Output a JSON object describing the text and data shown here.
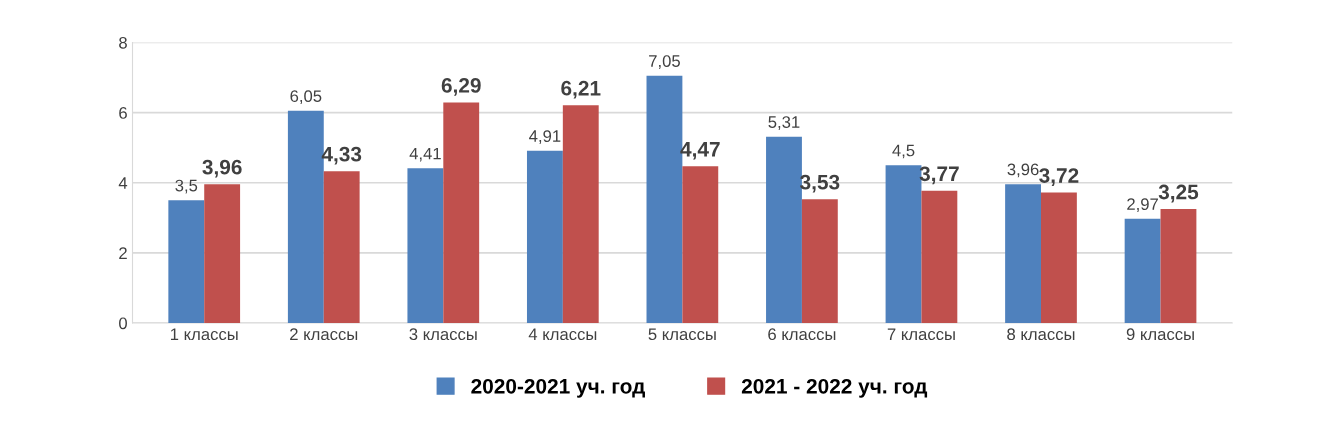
{
  "chart_data": {
    "type": "bar",
    "categories": [
      "1 классы",
      "2 классы",
      "3 классы",
      "4 классы",
      "5 классы",
      "6 классы",
      "7 классы",
      "8 классы",
      "9 классы"
    ],
    "series": [
      {
        "name": "2020-2021 уч. год",
        "color": "#4f81bd",
        "values": [
          3.5,
          6.05,
          4.41,
          4.91,
          7.05,
          5.31,
          4.5,
          3.96,
          2.97
        ],
        "value_labels": [
          "3,5",
          "6,05",
          "4,41",
          "4,91",
          "7,05",
          "5,31",
          "4,5",
          "3,96",
          "2,97"
        ]
      },
      {
        "name": "2021 - 2022 уч. год",
        "color": "#c0504d",
        "values": [
          3.96,
          4.33,
          6.29,
          6.21,
          4.47,
          3.53,
          3.77,
          3.72,
          3.25
        ],
        "value_labels": [
          "3,96",
          "4,33",
          "6,29",
          "6,21",
          "4,47",
          "3,53",
          "3,77",
          "3,72",
          "3,25"
        ]
      }
    ],
    "ylim": [
      0,
      8
    ],
    "yticks": [
      0,
      2,
      4,
      6,
      8
    ],
    "grid": "y",
    "legend": "bottom"
  }
}
